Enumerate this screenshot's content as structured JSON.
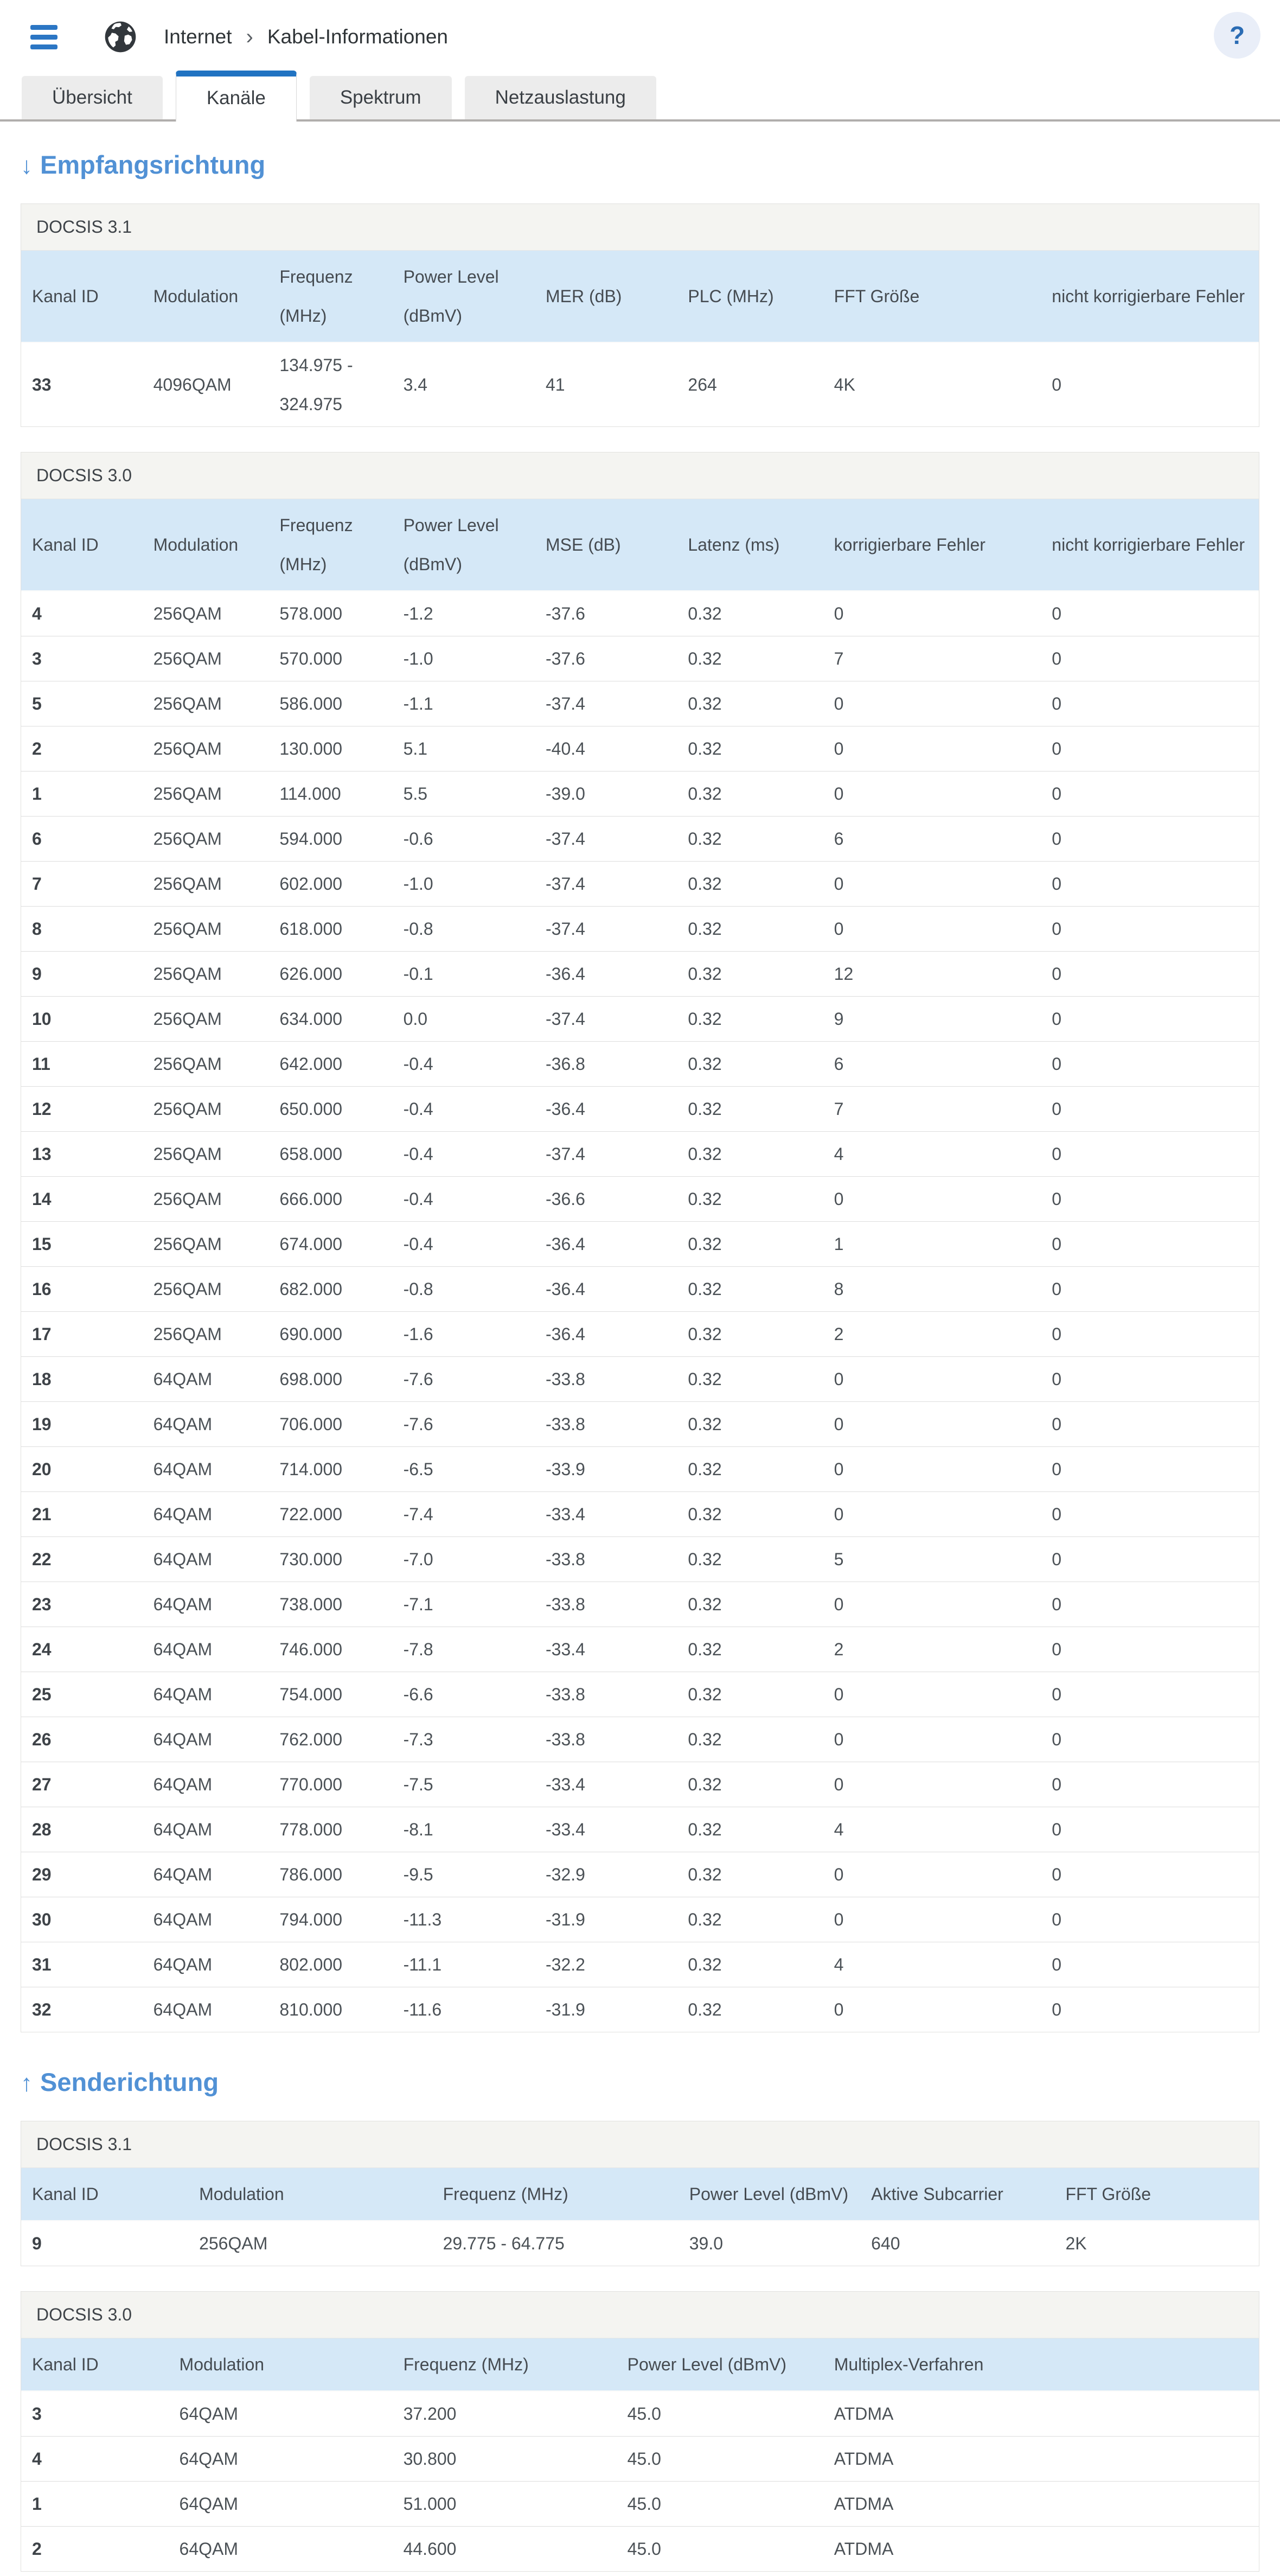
{
  "header": {
    "breadcrumb": {
      "section": "Internet",
      "separator": "›",
      "page": "Kabel-Informationen"
    },
    "help_label": "?"
  },
  "tabs": [
    {
      "id": "uebersicht",
      "label": "Übersicht",
      "active": false
    },
    {
      "id": "kanaele",
      "label": "Kanäle",
      "active": true
    },
    {
      "id": "spektrum",
      "label": "Spektrum",
      "active": false
    },
    {
      "id": "netzauslastung",
      "label": "Netzauslastung",
      "active": false
    }
  ],
  "downstream": {
    "arrow": "↓",
    "heading": "Empfangsrichtung",
    "docsis31": {
      "title": "DOCSIS 3.1",
      "headers": [
        "Kanal ID",
        "Modulation",
        "Frequenz (MHz)",
        "Power Level (dBmV)",
        "MER (dB)",
        "PLC (MHz)",
        "FFT Größe",
        "nicht korrigierbare Fehler"
      ],
      "rows": [
        [
          "33",
          "4096QAM",
          "134.975 - 324.975",
          "3.4",
          "41",
          "264",
          "4K",
          "0"
        ]
      ]
    },
    "docsis30": {
      "title": "DOCSIS 3.0",
      "headers": [
        "Kanal ID",
        "Modulation",
        "Frequenz (MHz)",
        "Power Level (dBmV)",
        "MSE (dB)",
        "Latenz (ms)",
        "korrigierbare Fehler",
        "nicht korrigierbare Fehler"
      ],
      "rows": [
        [
          "4",
          "256QAM",
          "578.000",
          "-1.2",
          "-37.6",
          "0.32",
          "0",
          "0"
        ],
        [
          "3",
          "256QAM",
          "570.000",
          "-1.0",
          "-37.6",
          "0.32",
          "7",
          "0"
        ],
        [
          "5",
          "256QAM",
          "586.000",
          "-1.1",
          "-37.4",
          "0.32",
          "0",
          "0"
        ],
        [
          "2",
          "256QAM",
          "130.000",
          "5.1",
          "-40.4",
          "0.32",
          "0",
          "0"
        ],
        [
          "1",
          "256QAM",
          "114.000",
          "5.5",
          "-39.0",
          "0.32",
          "0",
          "0"
        ],
        [
          "6",
          "256QAM",
          "594.000",
          "-0.6",
          "-37.4",
          "0.32",
          "6",
          "0"
        ],
        [
          "7",
          "256QAM",
          "602.000",
          "-1.0",
          "-37.4",
          "0.32",
          "0",
          "0"
        ],
        [
          "8",
          "256QAM",
          "618.000",
          "-0.8",
          "-37.4",
          "0.32",
          "0",
          "0"
        ],
        [
          "9",
          "256QAM",
          "626.000",
          "-0.1",
          "-36.4",
          "0.32",
          "12",
          "0"
        ],
        [
          "10",
          "256QAM",
          "634.000",
          "0.0",
          "-37.4",
          "0.32",
          "9",
          "0"
        ],
        [
          "11",
          "256QAM",
          "642.000",
          "-0.4",
          "-36.8",
          "0.32",
          "6",
          "0"
        ],
        [
          "12",
          "256QAM",
          "650.000",
          "-0.4",
          "-36.4",
          "0.32",
          "7",
          "0"
        ],
        [
          "13",
          "256QAM",
          "658.000",
          "-0.4",
          "-37.4",
          "0.32",
          "4",
          "0"
        ],
        [
          "14",
          "256QAM",
          "666.000",
          "-0.4",
          "-36.6",
          "0.32",
          "0",
          "0"
        ],
        [
          "15",
          "256QAM",
          "674.000",
          "-0.4",
          "-36.4",
          "0.32",
          "1",
          "0"
        ],
        [
          "16",
          "256QAM",
          "682.000",
          "-0.8",
          "-36.4",
          "0.32",
          "8",
          "0"
        ],
        [
          "17",
          "256QAM",
          "690.000",
          "-1.6",
          "-36.4",
          "0.32",
          "2",
          "0"
        ],
        [
          "18",
          "64QAM",
          "698.000",
          "-7.6",
          "-33.8",
          "0.32",
          "0",
          "0"
        ],
        [
          "19",
          "64QAM",
          "706.000",
          "-7.6",
          "-33.8",
          "0.32",
          "0",
          "0"
        ],
        [
          "20",
          "64QAM",
          "714.000",
          "-6.5",
          "-33.9",
          "0.32",
          "0",
          "0"
        ],
        [
          "21",
          "64QAM",
          "722.000",
          "-7.4",
          "-33.4",
          "0.32",
          "0",
          "0"
        ],
        [
          "22",
          "64QAM",
          "730.000",
          "-7.0",
          "-33.8",
          "0.32",
          "5",
          "0"
        ],
        [
          "23",
          "64QAM",
          "738.000",
          "-7.1",
          "-33.8",
          "0.32",
          "0",
          "0"
        ],
        [
          "24",
          "64QAM",
          "746.000",
          "-7.8",
          "-33.4",
          "0.32",
          "2",
          "0"
        ],
        [
          "25",
          "64QAM",
          "754.000",
          "-6.6",
          "-33.8",
          "0.32",
          "0",
          "0"
        ],
        [
          "26",
          "64QAM",
          "762.000",
          "-7.3",
          "-33.8",
          "0.32",
          "0",
          "0"
        ],
        [
          "27",
          "64QAM",
          "770.000",
          "-7.5",
          "-33.4",
          "0.32",
          "0",
          "0"
        ],
        [
          "28",
          "64QAM",
          "778.000",
          "-8.1",
          "-33.4",
          "0.32",
          "4",
          "0"
        ],
        [
          "29",
          "64QAM",
          "786.000",
          "-9.5",
          "-32.9",
          "0.32",
          "0",
          "0"
        ],
        [
          "30",
          "64QAM",
          "794.000",
          "-11.3",
          "-31.9",
          "0.32",
          "0",
          "0"
        ],
        [
          "31",
          "64QAM",
          "802.000",
          "-11.1",
          "-32.2",
          "0.32",
          "4",
          "0"
        ],
        [
          "32",
          "64QAM",
          "810.000",
          "-11.6",
          "-31.9",
          "0.32",
          "0",
          "0"
        ]
      ]
    }
  },
  "upstream": {
    "arrow": "↑",
    "heading": "Senderichtung",
    "docsis31": {
      "title": "DOCSIS 3.1",
      "headers": [
        "Kanal ID",
        "Modulation",
        "Frequenz (MHz)",
        "Power Level (dBmV)",
        "Aktive Subcarrier",
        "FFT Größe"
      ],
      "rows": [
        [
          "9",
          "256QAM",
          "29.775 - 64.775",
          "39.0",
          "640",
          "2K"
        ]
      ]
    },
    "docsis30": {
      "title": "DOCSIS 3.0",
      "headers": [
        "Kanal ID",
        "Modulation",
        "Frequenz (MHz)",
        "Power Level (dBmV)",
        "Multiplex-Verfahren"
      ],
      "rows": [
        [
          "3",
          "64QAM",
          "37.200",
          "45.0",
          "ATDMA"
        ],
        [
          "4",
          "64QAM",
          "30.800",
          "45.0",
          "ATDMA"
        ],
        [
          "1",
          "64QAM",
          "51.000",
          "45.0",
          "ATDMA"
        ],
        [
          "2",
          "64QAM",
          "44.600",
          "45.0",
          "ATDMA"
        ]
      ]
    }
  },
  "colors": {
    "accent_blue": "#2b76c4",
    "tab_active_bar": "#2173c2",
    "heading_blue": "#5191d5",
    "table_header_bg": "#d5e8f7",
    "panel_title_bg": "#f4f4f1",
    "help_circle_bg": "#e9eef8",
    "divider_gray": "#b1aeac"
  }
}
